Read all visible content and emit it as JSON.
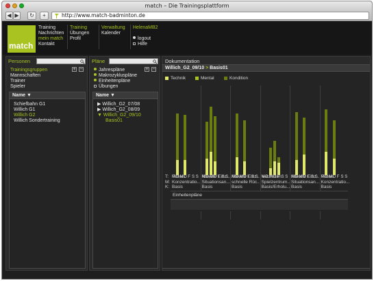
{
  "browser": {
    "title": "match – Die Trainingsplattform",
    "url": "http://www.match-badminton.de",
    "back_label": "◀",
    "forward_label": "▶",
    "reload_label": "↻",
    "add_label": "+"
  },
  "header": {
    "logo": "match",
    "nav_col1": [
      "Training",
      "Nachrichten",
      "mein match",
      "Kontakt"
    ],
    "nav_col2": [
      "Training",
      "Übungen",
      "Profil"
    ],
    "nav_col3": [
      "Verwaltung",
      "Kalender"
    ],
    "user": {
      "name": "HelenaMB2",
      "logout": "logout",
      "help": "Hilfe"
    }
  },
  "personen": {
    "title": "Personen",
    "categories": [
      "Trainingsgruppen",
      "Mannschaften",
      "Trainer",
      "Spieler"
    ],
    "list_header": "Name ▼",
    "items": [
      "Schiefbahn G1",
      "Willich G1",
      "Willich G2",
      "Willich Sondertraining"
    ]
  },
  "plaene": {
    "title": "Pläne",
    "filters": [
      "Jahrespläne",
      "Makrozykluspläne",
      "Einheitenpläne",
      "Übungen"
    ],
    "list_header": "Name ▼",
    "tree": [
      "▶ Willich_G2_07/08",
      "▶ Willich_G2_08/09",
      "▼ Willich_G2_09/10",
      "Basis01"
    ]
  },
  "doku": {
    "title": "Dokumentation",
    "breadcrumb_path": "Willich_G2_09/10",
    "breadcrumb_sep": ">",
    "breadcrumb_current": "Basis01",
    "legend": [
      "Technik",
      "Mental",
      "Kondition"
    ],
    "row_labels": [
      "T:",
      "M:",
      "K:"
    ],
    "days": [
      "M",
      "D",
      "M",
      "D",
      "F",
      "S",
      "S"
    ],
    "weeks": [
      {
        "t": "Finten",
        "m": "Konzentratio...",
        "k": "Basis"
      },
      {
        "t": "Abwehr Einz...",
        "m": "Situationsan...",
        "k": "Basis"
      },
      {
        "t": "Abwehr Einz...",
        "m": "schnelle Rüc...",
        "k": "Basis"
      },
      {
        "t": "Netzfinten",
        "m": "Spielzentrum...",
        "k": "Basis/Erholu..."
      },
      {
        "t": "Abwehr Einz...",
        "m": "Situationsan...",
        "k": "Basis"
      },
      {
        "t": "Finten",
        "m": "Konzentratio...",
        "k": "Basis"
      }
    ],
    "einheitenplaene_label": "Einheitenpläne"
  },
  "colors": {
    "technik": "#dfe86a",
    "mental": "#a9c321",
    "kondition": "#6b7d10",
    "accent": "#a9c321"
  }
}
